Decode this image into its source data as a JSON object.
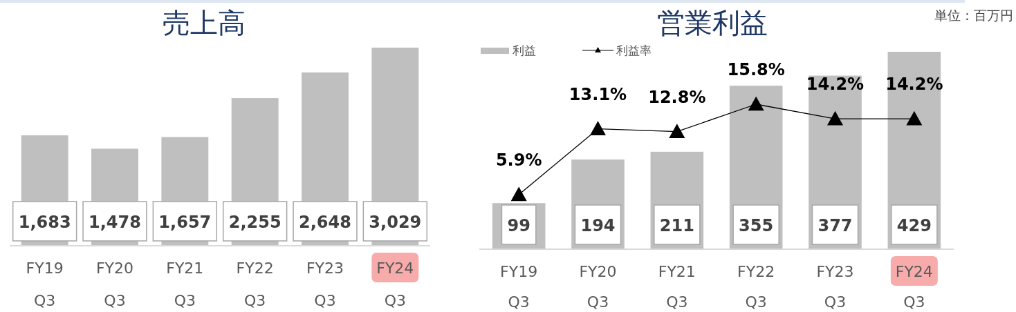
{
  "chart_data": [
    {
      "type": "bar",
      "title": "売上高",
      "categories": [
        "FY19\nQ3",
        "FY20\nQ3",
        "FY21\nQ3",
        "FY22\nQ3",
        "FY23\nQ3",
        "FY24\nQ3"
      ],
      "values": [
        1683,
        1478,
        1657,
        2255,
        2648,
        3029
      ],
      "color": "#bfbfbf",
      "value_labels": [
        "1,683",
        "1,478",
        "1,657",
        "2,255",
        "2,648",
        "3,029"
      ],
      "tick_labels": "x"
    },
    {
      "type": "bar",
      "title": "営業利益",
      "categories": [
        "FY19\nQ3",
        "FY20\nQ3",
        "FY21\nQ3",
        "FY22\nQ3",
        "FY23\nQ3",
        "FY24\nQ3"
      ],
      "series": [
        {
          "name": "利益",
          "color": "#bfbfbf",
          "values": [
            99,
            194,
            211,
            355,
            377,
            429
          ],
          "value_labels": [
            "99",
            "194",
            "211",
            "355",
            "377",
            "429"
          ]
        },
        {
          "name": "利益率",
          "type": "line",
          "axis": "y2",
          "color": "#000000",
          "marker": "triangle",
          "values": [
            5.9,
            13.1,
            12.8,
            15.8,
            14.2,
            14.2
          ],
          "value_labels": [
            "5.9%",
            "13.1%",
            "12.8%",
            "15.8%",
            "14.2%",
            "14.2%"
          ]
        }
      ],
      "legend": "top left",
      "tick_labels": "x",
      "annotations": [
        "単位：百万円"
      ]
    }
  ]
}
